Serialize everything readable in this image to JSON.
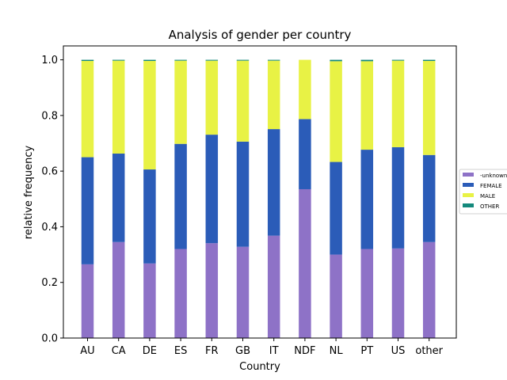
{
  "chart_data": {
    "type": "bar",
    "stacked": true,
    "title": "Analysis of gender per country",
    "xlabel": "Country",
    "ylabel": "relative frequency",
    "ylim": [
      0,
      1.05
    ],
    "yticks": [
      "0.0",
      "0.2",
      "0.4",
      "0.6",
      "0.8",
      "1.0"
    ],
    "grid": false,
    "legend_placement": "center-right",
    "categories": [
      "AU",
      "CA",
      "DE",
      "ES",
      "FR",
      "GB",
      "IT",
      "NDF",
      "NL",
      "PT",
      "US",
      "other"
    ],
    "series": [
      {
        "name": "-unknown-",
        "color": "#8e72c7",
        "values": [
          0.265,
          0.345,
          0.268,
          0.32,
          0.341,
          0.328,
          0.368,
          0.535,
          0.3,
          0.32,
          0.322,
          0.345
        ]
      },
      {
        "name": "FEMALE",
        "color": "#2b5cb8",
        "values": [
          0.385,
          0.318,
          0.338,
          0.378,
          0.39,
          0.378,
          0.383,
          0.252,
          0.333,
          0.357,
          0.364,
          0.313
        ]
      },
      {
        "name": "MALE",
        "color": "#e8f245",
        "values": [
          0.346,
          0.334,
          0.39,
          0.299,
          0.266,
          0.291,
          0.246,
          0.213,
          0.362,
          0.318,
          0.311,
          0.338
        ]
      },
      {
        "name": "OTHER",
        "color": "#14897c",
        "values": [
          0.004,
          0.003,
          0.004,
          0.003,
          0.003,
          0.003,
          0.003,
          0.0,
          0.005,
          0.005,
          0.003,
          0.004
        ]
      }
    ]
  }
}
